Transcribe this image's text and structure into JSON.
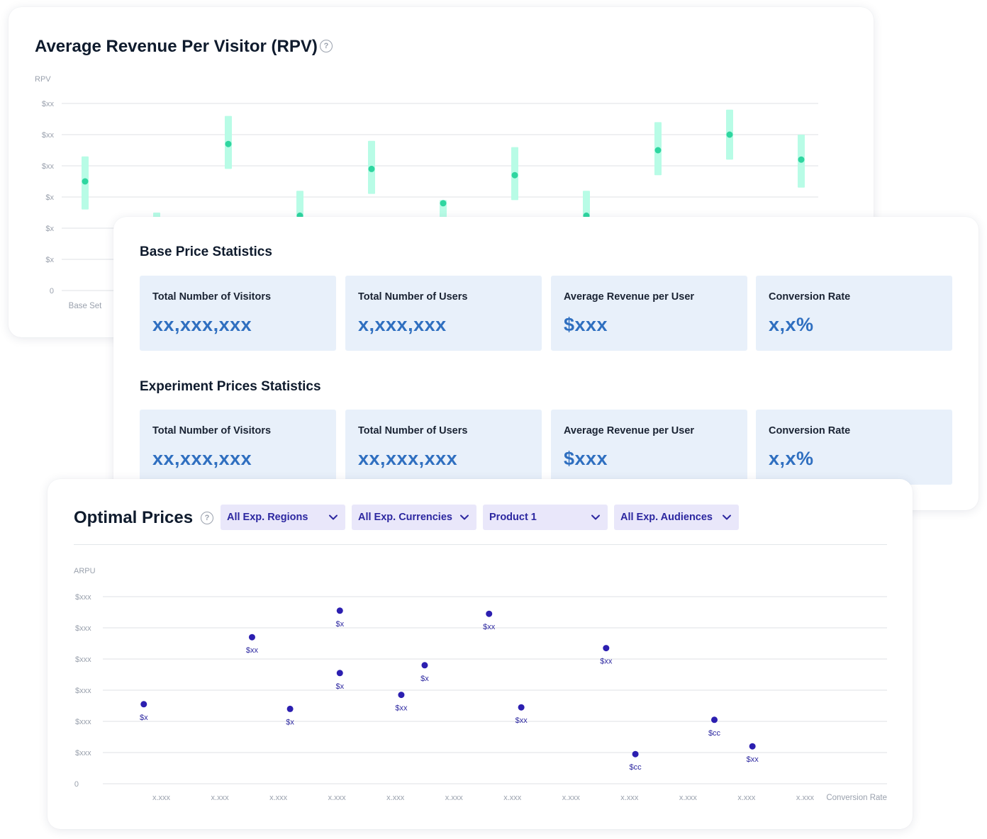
{
  "rpv": {
    "title": "Average Revenue Per Visitor (RPV)",
    "help_icon": "question-circle-icon"
  },
  "stats": {
    "base_title": "Base Price Statistics",
    "experiment_title": "Experiment Prices Statistics",
    "base": [
      {
        "label": "Total Number of Visitors",
        "value": "xx,xxx,xxx"
      },
      {
        "label": "Total Number of Users",
        "value": "x,xxx,xxx"
      },
      {
        "label": "Average Revenue per User",
        "value": "$xxx"
      },
      {
        "label": "Conversion Rate",
        "value": "x,x%"
      }
    ],
    "experiment": [
      {
        "label": "Total Number of Visitors",
        "value": "xx,xxx,xxx"
      },
      {
        "label": "Total Number of Users",
        "value": "xx,xxx,xxx"
      },
      {
        "label": "Average Revenue per User",
        "value": "$xxx"
      },
      {
        "label": "Conversion Rate",
        "value": "x,x%"
      }
    ]
  },
  "optimal": {
    "title": "Optimal Prices",
    "help_icon": "question-circle-icon",
    "filters": [
      {
        "label": "All Exp. Regions",
        "icon": "chevron-down-icon"
      },
      {
        "label": "All Exp. Currencies",
        "icon": "chevron-down-icon"
      },
      {
        "label": "Product 1",
        "icon": "chevron-down-icon"
      },
      {
        "label": "All Exp. Audiences",
        "icon": "chevron-down-icon"
      }
    ]
  },
  "colors": {
    "rpv_bar": "#b8fce6",
    "rpv_point": "#2fd6a0",
    "scatter_point": "#2c1fb0",
    "stat_value": "#2f6fc0",
    "stat_bg": "#e8f0fa",
    "dropdown_bg": "#e9e7fa",
    "dropdown_text": "#2c27a0"
  },
  "chart_data": [
    {
      "type": "scatter",
      "title": "Average Revenue Per Visitor (RPV)",
      "ylabel": "RPV",
      "y_tick_labels": [
        "0",
        "$x",
        "$x",
        "$x",
        "$xx",
        "$xx",
        "$xx"
      ],
      "x_tick_labels": [
        "Base Set"
      ],
      "ylim": [
        0,
        6
      ],
      "grid": true,
      "series": [
        {
          "values": [
            3.5,
            2.2,
            4.7,
            2.4,
            3.9,
            2.8,
            3.7,
            2.4,
            4.5,
            5.0,
            4.2
          ],
          "error_low": [
            2.6,
            1.6,
            3.9,
            1.9,
            3.1,
            2.2,
            2.9,
            1.9,
            3.7,
            4.2,
            3.3
          ],
          "error_high": [
            4.3,
            2.5,
            5.6,
            3.2,
            4.8,
            2.9,
            4.6,
            3.2,
            5.4,
            5.8,
            5.0
          ]
        }
      ]
    },
    {
      "type": "scatter",
      "title": "Optimal Prices",
      "ylabel": "ARPU",
      "xlabel": "Conversion Rate",
      "y_tick_labels": [
        "0",
        "$xxx",
        "$xxx",
        "$xxx",
        "$xxx",
        "$xxx",
        "$xxx"
      ],
      "x_tick_labels": [
        "x.xxx",
        "x.xxx",
        "x.xxx",
        "x.xxx",
        "x.xxx",
        "x.xxx",
        "x.xxx",
        "x.xxx",
        "x.xxx",
        "x.xxx",
        "x.xxx",
        "x.xxx"
      ],
      "ylim": [
        0,
        6
      ],
      "xlim": [
        0,
        13.4
      ],
      "grid": true,
      "points": [
        {
          "x": 0.7,
          "y": 2.55,
          "label": "$x"
        },
        {
          "x": 2.55,
          "y": 4.7,
          "label": "$xx"
        },
        {
          "x": 3.2,
          "y": 2.4,
          "label": "$x"
        },
        {
          "x": 4.05,
          "y": 5.55,
          "label": "$x"
        },
        {
          "x": 4.05,
          "y": 3.55,
          "label": "$x"
        },
        {
          "x": 5.1,
          "y": 2.85,
          "label": "$xx"
        },
        {
          "x": 5.5,
          "y": 3.8,
          "label": "$x"
        },
        {
          "x": 6.6,
          "y": 5.45,
          "label": "$xx"
        },
        {
          "x": 7.15,
          "y": 2.45,
          "label": "$xx"
        },
        {
          "x": 8.6,
          "y": 4.35,
          "label": "$xx"
        },
        {
          "x": 9.1,
          "y": 0.95,
          "label": "$cc"
        },
        {
          "x": 10.45,
          "y": 2.05,
          "label": "$cc"
        },
        {
          "x": 11.1,
          "y": 1.2,
          "label": "$xx"
        }
      ]
    }
  ]
}
